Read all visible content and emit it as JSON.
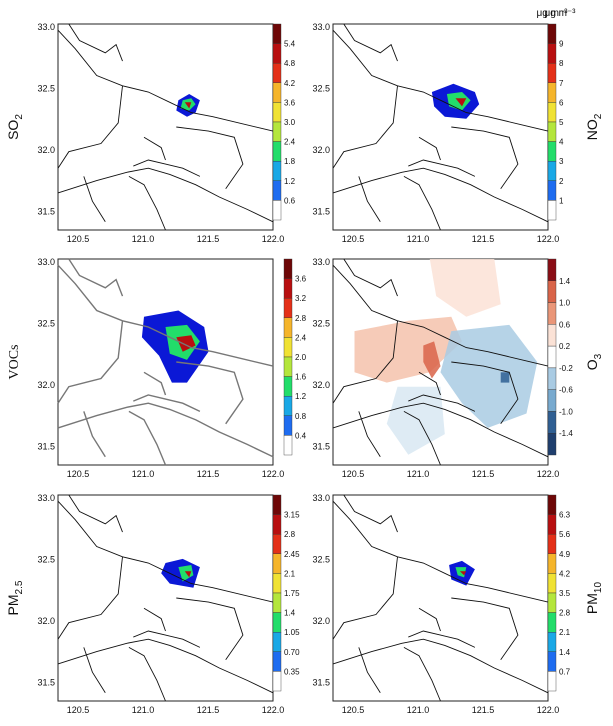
{
  "units_label": "μg m⁻³",
  "x_ticks": [
    "120.5",
    "121.0",
    "121.5",
    "122.0"
  ],
  "y_ticks": [
    "33.0",
    "32.5",
    "32.0",
    "31.5"
  ],
  "colors": {
    "sequential": [
      "#ffffff",
      "#0b18d6",
      "#1e6cf0",
      "#19a8e6",
      "#1ccfc0",
      "#22dd6a",
      "#b4e63c",
      "#f0e234",
      "#f5b52b",
      "#f07820",
      "#e43018",
      "#b80f10",
      "#6e0707"
    ],
    "diverging": [
      "#1f3f6e",
      "#2f5f93",
      "#4d84b6",
      "#78aacf",
      "#a9cbe3",
      "#d8e8f2",
      "#ffffff",
      "#fbe2d6",
      "#f4c2ac",
      "#ea9678",
      "#d96449",
      "#c03127",
      "#8a0d15"
    ]
  },
  "panels": [
    {
      "id": "so2",
      "label": "SO",
      "sub": "2",
      "label_side": "left",
      "show_units": true,
      "scale": "sequential",
      "ticks": [
        "5.4",
        "4.8",
        "4.2",
        "3.6",
        "3.0",
        "2.4",
        "1.8",
        "1.2",
        "0.6"
      ]
    },
    {
      "id": "no2",
      "label": "NO",
      "sub": "2",
      "label_side": "right",
      "show_units": true,
      "scale": "sequential",
      "ticks": [
        "9",
        "8",
        "7",
        "6",
        "5",
        "4",
        "3",
        "2",
        "1"
      ]
    },
    {
      "id": "vocs",
      "label": "VOCs",
      "sub": "",
      "label_side": "left",
      "show_units": false,
      "scale": "sequential",
      "ticks": [
        "3.6",
        "3.2",
        "2.8",
        "2.4",
        "2.0",
        "1.6",
        "1.2",
        "0.8",
        "0.4"
      ]
    },
    {
      "id": "o3",
      "label": "O",
      "sub": "3",
      "label_side": "right",
      "show_units": false,
      "scale": "diverging",
      "ticks": [
        "1.4",
        "1.0",
        "0.6",
        "0.2",
        "-0.2",
        "-0.6",
        "-1.0",
        "-1.4"
      ]
    },
    {
      "id": "pm25",
      "label": "PM",
      "sub": "2.5",
      "label_side": "left",
      "show_units": false,
      "scale": "sequential",
      "ticks": [
        "3.15",
        "2.8",
        "2.45",
        "2.1",
        "1.75",
        "1.4",
        "1.05",
        "0.70",
        "0.35"
      ]
    },
    {
      "id": "pm10",
      "label": "PM",
      "sub": "10",
      "label_side": "right",
      "show_units": false,
      "scale": "sequential",
      "ticks": [
        "6.3",
        "5.6",
        "4.9",
        "4.2",
        "3.5",
        "2.8",
        "2.1",
        "1.4",
        "0.7"
      ]
    }
  ]
}
